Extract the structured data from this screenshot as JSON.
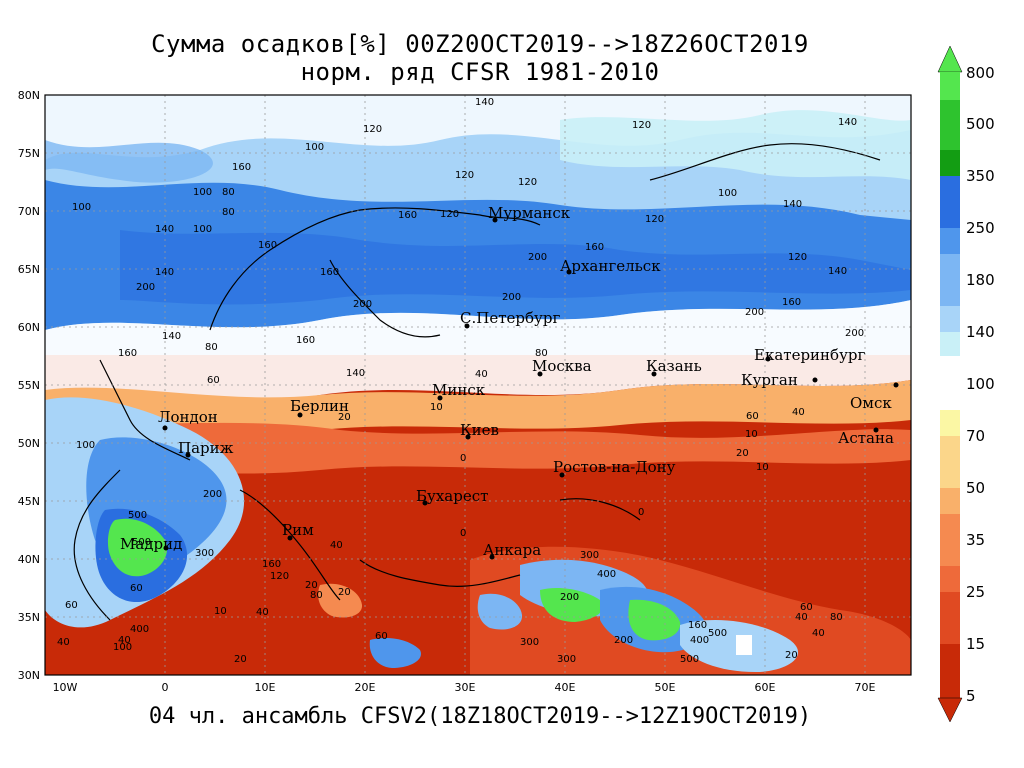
{
  "title_line1": "Сумма осадков[%] 00Z20OCT2019-->18Z26OCT2019",
  "title_line2": "норм. ряд CFSR 1981-2010",
  "bottom_caption": "04 чл. ансамбль CFSV2(18Z18OCT2019-->12Z19OCT2019)",
  "lat_labels": [
    "80N",
    "75N",
    "70N",
    "65N",
    "60N",
    "55N",
    "50N",
    "45N",
    "40N",
    "35N",
    "30N"
  ],
  "lon_labels": [
    "10W",
    "0",
    "10E",
    "20E",
    "30E",
    "40E",
    "50E",
    "60E",
    "70E"
  ],
  "colorbar": {
    "labels": [
      "800",
      "500",
      "350",
      "250",
      "180",
      "140",
      "100",
      "70",
      "50",
      "35",
      "25",
      "15",
      "5"
    ],
    "upper_colors": [
      "#54e64e",
      "#2ec32e",
      "#139d13",
      "#2a6ee0",
      "#4f96ec",
      "#7cb6f3",
      "#a8d4f8",
      "#c9f0f7"
    ],
    "lower_colors": [
      "#fbf7a4",
      "#fbd68a",
      "#f9b06a",
      "#f58a50",
      "#ee6a3a",
      "#e04a22",
      "#c82a08"
    ]
  },
  "cities": [
    {
      "name": "Мурманск"
    },
    {
      "name": "Архангельск"
    },
    {
      "name": "С.Петербург"
    },
    {
      "name": "Москва"
    },
    {
      "name": "Казань"
    },
    {
      "name": "Екатеринбург"
    },
    {
      "name": "Курган"
    },
    {
      "name": "Омск"
    },
    {
      "name": "Астана"
    },
    {
      "name": "Минск"
    },
    {
      "name": "Берлин"
    },
    {
      "name": "Лондон"
    },
    {
      "name": "Париж"
    },
    {
      "name": "Киев"
    },
    {
      "name": "Ростов-на-Дону"
    },
    {
      "name": "Бухарест"
    },
    {
      "name": "Рим"
    },
    {
      "name": "Мадрид"
    },
    {
      "name": "Анкара"
    }
  ],
  "contour_labels": [
    "140",
    "120",
    "100",
    "120",
    "160",
    "120",
    "100",
    "140",
    "120",
    "100",
    "80",
    "100",
    "120",
    "160",
    "120",
    "140",
    "100",
    "80",
    "160",
    "200",
    "140",
    "160",
    "200",
    "120",
    "140",
    "160",
    "200",
    "140",
    "160",
    "200",
    "140",
    "200",
    "160",
    "80",
    "160",
    "80",
    "60",
    "200",
    "100",
    "140",
    "60",
    "40",
    "20",
    "10",
    "0",
    "10",
    "0",
    "20",
    "10",
    "0",
    "40",
    "60",
    "40",
    "200",
    "500",
    "300",
    "160",
    "120",
    "80",
    "40",
    "20",
    "60",
    "10",
    "40",
    "60",
    "40",
    "20",
    "300",
    "400",
    "200",
    "500",
    "300",
    "400",
    "500",
    "60",
    "40",
    "20",
    "400",
    "80",
    "40",
    "20",
    "100",
    "300",
    "200",
    "500",
    "160"
  ],
  "colors": {
    "ocean_blue": "#3b86e6",
    "wet_light": "#a8d4f8",
    "dry_dark": "#c82a08",
    "dry_mid": "#e04a22"
  }
}
